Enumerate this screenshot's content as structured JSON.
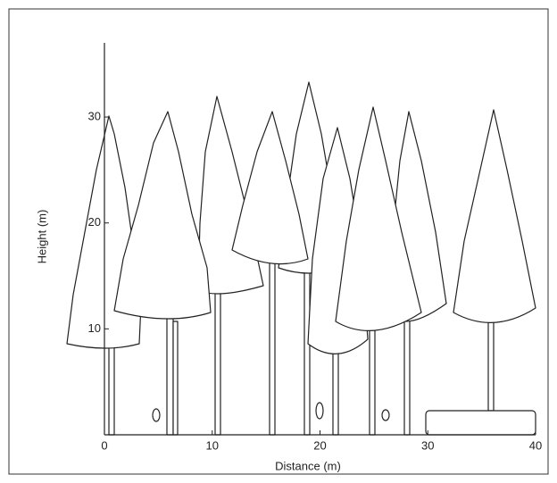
{
  "chart_data": {
    "type": "profile",
    "x_label": "Distance (m)",
    "y_label": "Height (m)",
    "xlim": [
      0,
      40
    ],
    "ylim": [
      0,
      37
    ],
    "xticks": [
      0,
      10,
      20,
      30,
      40
    ],
    "yticks": [
      10,
      20,
      30
    ]
  }
}
